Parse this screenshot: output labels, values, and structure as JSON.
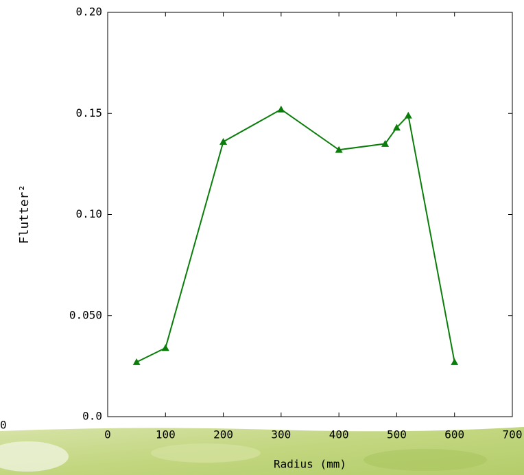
{
  "chart_data": {
    "type": "line",
    "marker": "triangle",
    "color": "#0a7d0a",
    "x_label": "Radius (mm)",
    "y_label": "Flutter²",
    "corner_text": "0",
    "x": [
      50,
      100,
      200,
      300,
      400,
      480,
      500,
      520,
      600
    ],
    "values": [
      0.027,
      0.034,
      0.136,
      0.152,
      0.132,
      0.135,
      0.143,
      0.149,
      0.027
    ],
    "xlim": [
      0,
      700
    ],
    "xticks": [
      0,
      100,
      200,
      300,
      400,
      500,
      600,
      700
    ],
    "ylim": [
      0,
      0.2
    ],
    "yticks": [
      {
        "value": 0,
        "label": "0.0"
      },
      {
        "value": 0.05,
        "label": "0.050"
      },
      {
        "value": 0.1,
        "label": "0.10"
      },
      0.15,
      {
        "value": 0.2,
        "label": "0.20"
      }
    ]
  }
}
